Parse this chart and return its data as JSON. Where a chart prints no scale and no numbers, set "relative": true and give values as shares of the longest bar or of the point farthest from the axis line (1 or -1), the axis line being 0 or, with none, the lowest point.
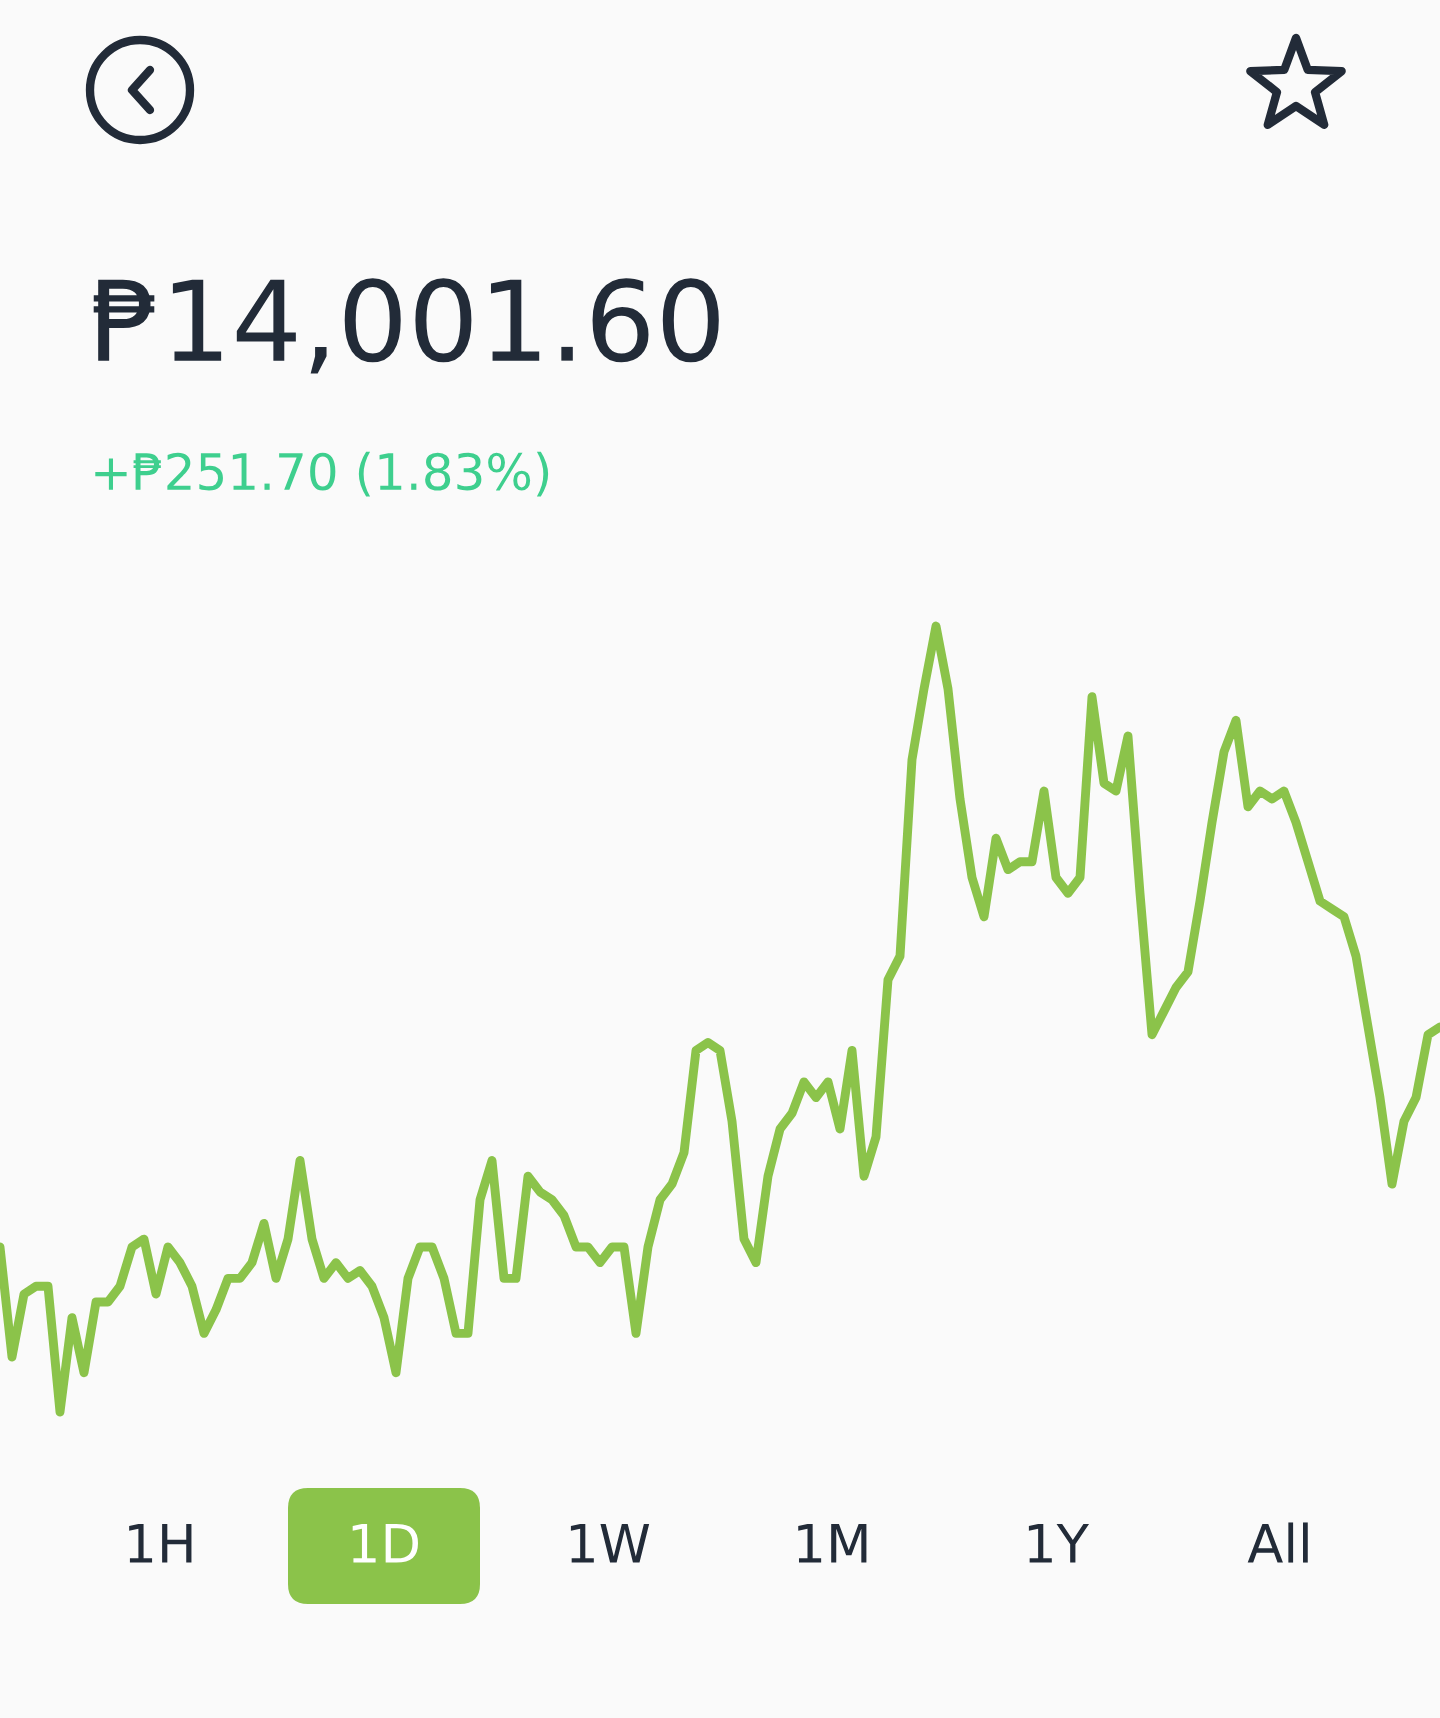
{
  "chart_data": {
    "type": "line",
    "relative": true,
    "title": "₱14,001.60",
    "subtitle": "+₱251.70 (1.83%)",
    "color": "#8bc34a",
    "annotations": [
      "1H",
      "1D",
      "1W",
      "1M",
      "1Y",
      "All"
    ],
    "categories": [
      null,
      null,
      null,
      null,
      null,
      null,
      null,
      null,
      null,
      null,
      null,
      null,
      null,
      null,
      null,
      null,
      null,
      null,
      null,
      null,
      null,
      null,
      null,
      null,
      null,
      null,
      null,
      null,
      null,
      null,
      null,
      null,
      null,
      null,
      null,
      null,
      null,
      null,
      null,
      null,
      null,
      null,
      null,
      null,
      null,
      null,
      null,
      null,
      null,
      null,
      null,
      null,
      null,
      null,
      null,
      null,
      null,
      null,
      null,
      null,
      null,
      null,
      null,
      null,
      null,
      null,
      null,
      null,
      null,
      null,
      null,
      null,
      null,
      null,
      null,
      null,
      null,
      null,
      null,
      null,
      null,
      null,
      null,
      null,
      null,
      null,
      null,
      null,
      null,
      null,
      null,
      null,
      null,
      null,
      null,
      null,
      null,
      null,
      null,
      null,
      null,
      null,
      null,
      null,
      null,
      null,
      null,
      null,
      null,
      null,
      null,
      null,
      null,
      null,
      null,
      null,
      null,
      null,
      null,
      null,
      null
    ],
    "series": [
      {
        "color": "#8bc34a",
        "values": [
          0.21,
          0.07,
          0.15,
          0.16,
          0.16,
          0,
          0.12,
          0.05,
          0.14,
          0.14,
          0.16,
          0.21,
          0.22,
          0.15,
          0.21,
          0.19,
          0.16,
          0.1,
          0.13,
          0.17,
          0.17,
          0.19,
          0.24,
          0.17,
          0.22,
          0.32,
          0.22,
          0.17,
          0.19,
          0.17,
          0.18,
          0.16,
          0.12,
          0.05,
          0.17,
          0.21,
          0.21,
          0.17,
          0.1,
          0.1,
          0.27,
          0.32,
          0.17,
          0.17,
          0.3,
          0.28,
          0.27,
          0.25,
          0.21,
          0.21,
          0.19,
          0.21,
          0.21,
          0.1,
          0.21,
          0.27,
          0.29,
          0.33,
          0.46,
          0.47,
          0.46,
          0.37,
          0.22,
          0.19,
          0.3,
          0.36,
          0.38,
          0.42,
          0.4,
          0.42,
          0.36,
          0.46,
          0.3,
          0.35,
          0.55,
          0.58,
          0.83,
          0.92,
          1,
          0.92,
          0.78,
          0.68,
          0.63,
          0.73,
          0.69,
          0.7,
          0.7,
          0.79,
          0.68,
          0.66,
          0.68,
          0.91,
          0.8,
          0.79,
          0.86,
          0.66,
          0.48,
          0.51,
          0.54,
          0.56,
          0.65,
          0.75,
          0.84,
          0.88,
          0.77,
          0.79,
          0.78,
          0.79,
          0.75,
          0.7,
          0.65,
          0.64,
          0.63,
          0.58,
          0.49,
          0.4,
          0.29,
          0.37,
          0.4,
          0.48,
          0.49
        ]
      }
    ],
    "legend": false,
    "marker": "none",
    "line_style": "solid"
  }
}
